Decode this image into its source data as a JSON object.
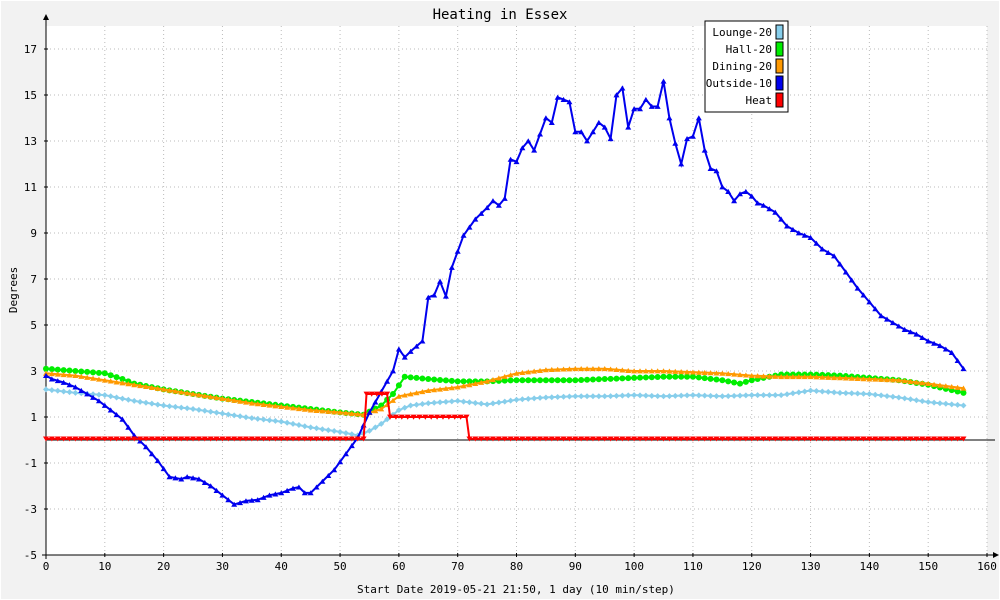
{
  "chart_data": {
    "type": "line",
    "title": "Heating in Essex",
    "xlabel": "Start Date 2019-05-21 21:50, 1 day (10 min/step)",
    "ylabel": "Degrees",
    "xlim": [
      0,
      160
    ],
    "ylim": [
      -5,
      18
    ],
    "x_ticks": [
      0,
      10,
      20,
      30,
      40,
      50,
      60,
      70,
      80,
      90,
      100,
      110,
      120,
      130,
      140,
      150,
      160
    ],
    "y_ticks": [
      -5,
      -3,
      -1,
      1,
      3,
      5,
      7,
      9,
      11,
      13,
      15,
      17
    ],
    "grid": true,
    "legend_position": "top-right",
    "series": [
      {
        "name": "Lounge-20",
        "color": "#87ceeb",
        "marker": "diamond",
        "points": [
          [
            0,
            2.2
          ],
          [
            5,
            2.05
          ],
          [
            10,
            1.95
          ],
          [
            15,
            1.7
          ],
          [
            20,
            1.5
          ],
          [
            25,
            1.35
          ],
          [
            30,
            1.15
          ],
          [
            35,
            0.95
          ],
          [
            40,
            0.8
          ],
          [
            45,
            0.55
          ],
          [
            50,
            0.35
          ],
          [
            53,
            0.2
          ],
          [
            55,
            0.4
          ],
          [
            57,
            0.7
          ],
          [
            60,
            1.3
          ],
          [
            62,
            1.5
          ],
          [
            65,
            1.6
          ],
          [
            70,
            1.7
          ],
          [
            75,
            1.55
          ],
          [
            80,
            1.75
          ],
          [
            85,
            1.85
          ],
          [
            90,
            1.9
          ],
          [
            95,
            1.9
          ],
          [
            100,
            1.95
          ],
          [
            105,
            1.9
          ],
          [
            110,
            1.95
          ],
          [
            115,
            1.9
          ],
          [
            120,
            1.95
          ],
          [
            125,
            1.95
          ],
          [
            130,
            2.15
          ],
          [
            135,
            2.05
          ],
          [
            140,
            2.0
          ],
          [
            145,
            1.85
          ],
          [
            150,
            1.65
          ],
          [
            156,
            1.5
          ]
        ]
      },
      {
        "name": "Hall-20",
        "color": "#00ee00",
        "marker": "circle",
        "points": [
          [
            0,
            3.1
          ],
          [
            5,
            3.0
          ],
          [
            10,
            2.9
          ],
          [
            13,
            2.65
          ],
          [
            15,
            2.45
          ],
          [
            20,
            2.2
          ],
          [
            25,
            2.0
          ],
          [
            30,
            1.8
          ],
          [
            35,
            1.65
          ],
          [
            40,
            1.5
          ],
          [
            45,
            1.35
          ],
          [
            50,
            1.2
          ],
          [
            54,
            1.1
          ],
          [
            57,
            1.5
          ],
          [
            59,
            2.0
          ],
          [
            61,
            2.75
          ],
          [
            65,
            2.65
          ],
          [
            70,
            2.55
          ],
          [
            75,
            2.55
          ],
          [
            80,
            2.6
          ],
          [
            85,
            2.6
          ],
          [
            90,
            2.6
          ],
          [
            95,
            2.65
          ],
          [
            100,
            2.7
          ],
          [
            105,
            2.75
          ],
          [
            110,
            2.75
          ],
          [
            115,
            2.6
          ],
          [
            118,
            2.45
          ],
          [
            120,
            2.6
          ],
          [
            125,
            2.85
          ],
          [
            130,
            2.85
          ],
          [
            135,
            2.8
          ],
          [
            140,
            2.7
          ],
          [
            145,
            2.6
          ],
          [
            150,
            2.4
          ],
          [
            156,
            2.05
          ]
        ]
      },
      {
        "name": "Dining-20",
        "color": "#ff9900",
        "marker": "triangle-up",
        "points": [
          [
            0,
            2.9
          ],
          [
            5,
            2.8
          ],
          [
            10,
            2.6
          ],
          [
            15,
            2.4
          ],
          [
            20,
            2.2
          ],
          [
            25,
            2.0
          ],
          [
            30,
            1.8
          ],
          [
            35,
            1.6
          ],
          [
            40,
            1.45
          ],
          [
            45,
            1.3
          ],
          [
            50,
            1.2
          ],
          [
            54,
            1.1
          ],
          [
            57,
            1.35
          ],
          [
            60,
            1.9
          ],
          [
            65,
            2.15
          ],
          [
            70,
            2.3
          ],
          [
            75,
            2.55
          ],
          [
            80,
            2.9
          ],
          [
            85,
            3.05
          ],
          [
            90,
            3.1
          ],
          [
            95,
            3.1
          ],
          [
            100,
            3.0
          ],
          [
            105,
            3.0
          ],
          [
            110,
            2.95
          ],
          [
            115,
            2.9
          ],
          [
            120,
            2.8
          ],
          [
            125,
            2.75
          ],
          [
            130,
            2.75
          ],
          [
            135,
            2.7
          ],
          [
            140,
            2.65
          ],
          [
            145,
            2.6
          ],
          [
            150,
            2.45
          ],
          [
            156,
            2.25
          ]
        ]
      },
      {
        "name": "Outside-10",
        "color": "#0000ee",
        "marker": "triangle-up",
        "points": [
          [
            0,
            2.8
          ],
          [
            1,
            2.65
          ],
          [
            3,
            2.5
          ],
          [
            5,
            2.3
          ],
          [
            7,
            2.0
          ],
          [
            9,
            1.7
          ],
          [
            11,
            1.3
          ],
          [
            13,
            0.9
          ],
          [
            15,
            0.2
          ],
          [
            17,
            -0.3
          ],
          [
            19,
            -0.9
          ],
          [
            21,
            -1.6
          ],
          [
            23,
            -1.7
          ],
          [
            24,
            -1.6
          ],
          [
            26,
            -1.7
          ],
          [
            28,
            -2.0
          ],
          [
            30,
            -2.4
          ],
          [
            32,
            -2.8
          ],
          [
            34,
            -2.65
          ],
          [
            36,
            -2.6
          ],
          [
            38,
            -2.4
          ],
          [
            40,
            -2.3
          ],
          [
            42,
            -2.1
          ],
          [
            43,
            -2.05
          ],
          [
            44,
            -2.3
          ],
          [
            45,
            -2.3
          ],
          [
            47,
            -1.8
          ],
          [
            49,
            -1.3
          ],
          [
            51,
            -0.6
          ],
          [
            53,
            0.1
          ],
          [
            55,
            1.2
          ],
          [
            57,
            2.1
          ],
          [
            59,
            3.0
          ],
          [
            60,
            3.95
          ],
          [
            61,
            3.6
          ],
          [
            62,
            3.85
          ],
          [
            64,
            4.3
          ],
          [
            65,
            6.2
          ],
          [
            66,
            6.3
          ],
          [
            67,
            6.9
          ],
          [
            68,
            6.25
          ],
          [
            69,
            7.5
          ],
          [
            71,
            8.9
          ],
          [
            73,
            9.6
          ],
          [
            75,
            10.1
          ],
          [
            76,
            10.4
          ],
          [
            77,
            10.2
          ],
          [
            78,
            10.5
          ],
          [
            79,
            12.2
          ],
          [
            80,
            12.1
          ],
          [
            81,
            12.7
          ],
          [
            82,
            13.0
          ],
          [
            83,
            12.6
          ],
          [
            84,
            13.3
          ],
          [
            85,
            14.0
          ],
          [
            86,
            13.8
          ],
          [
            87,
            14.9
          ],
          [
            88,
            14.8
          ],
          [
            89,
            14.7
          ],
          [
            90,
            13.4
          ],
          [
            91,
            13.4
          ],
          [
            92,
            13.0
          ],
          [
            94,
            13.8
          ],
          [
            95,
            13.6
          ],
          [
            96,
            13.1
          ],
          [
            97,
            15.0
          ],
          [
            98,
            15.3
          ],
          [
            99,
            13.6
          ],
          [
            100,
            14.4
          ],
          [
            101,
            14.4
          ],
          [
            102,
            14.8
          ],
          [
            103,
            14.5
          ],
          [
            104,
            14.5
          ],
          [
            105,
            15.6
          ],
          [
            106,
            14.0
          ],
          [
            107,
            12.9
          ],
          [
            108,
            12.0
          ],
          [
            109,
            13.1
          ],
          [
            110,
            13.2
          ],
          [
            111,
            14.0
          ],
          [
            112,
            12.6
          ],
          [
            113,
            11.8
          ],
          [
            114,
            11.7
          ],
          [
            115,
            11.0
          ],
          [
            116,
            10.8
          ],
          [
            117,
            10.4
          ],
          [
            118,
            10.7
          ],
          [
            119,
            10.8
          ],
          [
            120,
            10.6
          ],
          [
            121,
            10.3
          ],
          [
            122,
            10.2
          ],
          [
            124,
            9.9
          ],
          [
            126,
            9.3
          ],
          [
            128,
            9.0
          ],
          [
            130,
            8.8
          ],
          [
            132,
            8.3
          ],
          [
            134,
            8.0
          ],
          [
            136,
            7.3
          ],
          [
            138,
            6.6
          ],
          [
            140,
            6.0
          ],
          [
            142,
            5.4
          ],
          [
            144,
            5.1
          ],
          [
            146,
            4.8
          ],
          [
            148,
            4.6
          ],
          [
            150,
            4.3
          ],
          [
            152,
            4.1
          ],
          [
            154,
            3.8
          ],
          [
            156,
            3.1
          ]
        ]
      },
      {
        "name": "Heat",
        "color": "#ff0000",
        "marker": "triangle-down",
        "points": [
          [
            0,
            0.05
          ],
          [
            54,
            0.05
          ],
          [
            54.5,
            2.0
          ],
          [
            58,
            2.0
          ],
          [
            58.5,
            1.0
          ],
          [
            71.5,
            1.0
          ],
          [
            72,
            0.05
          ],
          [
            156,
            0.05
          ]
        ]
      }
    ]
  }
}
